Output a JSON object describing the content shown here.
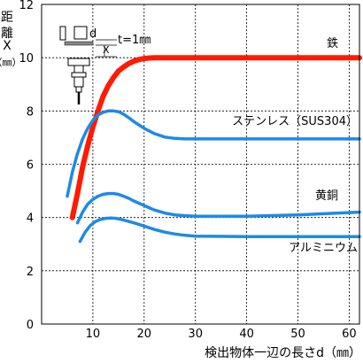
{
  "chart_data": {
    "type": "line",
    "xlabel": "検出物体一辺の長さd（㎜）",
    "ylabel_chars": [
      "距",
      "離",
      "X",
      "（㎜）"
    ],
    "xlim": [
      0,
      62
    ],
    "ylim": [
      0,
      12
    ],
    "x_ticks": [
      10,
      20,
      30,
      40,
      50,
      60
    ],
    "x_tick_labels": [
      "10",
      "20",
      "30",
      "40",
      "50",
      "60"
    ],
    "y_ticks": [
      0,
      2,
      4,
      6,
      8,
      10,
      12
    ],
    "y_tick_labels": [
      "0",
      "2",
      "4",
      "6",
      "8",
      "10",
      "12"
    ],
    "grid": true,
    "series": [
      {
        "name": "鉄",
        "color": "#ff1a00",
        "x": [
          6,
          7,
          8,
          9,
          10,
          11,
          12,
          13,
          14,
          15,
          16,
          17,
          18,
          19,
          20,
          21,
          22,
          23,
          24,
          25,
          27,
          30,
          40,
          50,
          62
        ],
        "y": [
          4.0,
          4.9,
          5.9,
          6.7,
          7.4,
          8.0,
          8.55,
          8.95,
          9.25,
          9.5,
          9.65,
          9.78,
          9.87,
          9.93,
          9.97,
          9.99,
          10.0,
          10.0,
          10.0,
          10.0,
          10.0,
          10.0,
          10.0,
          10.0,
          10.0
        ]
      },
      {
        "name": "ステンレス（SUS304）",
        "color": "#1e8ae6",
        "x": [
          5,
          6,
          7,
          8,
          9,
          10,
          11,
          12,
          13,
          14,
          15,
          16,
          17,
          18,
          20,
          22,
          24,
          26,
          28,
          30,
          40,
          50,
          62
        ],
        "y": [
          4.8,
          5.7,
          6.4,
          6.95,
          7.35,
          7.65,
          7.85,
          7.95,
          8.0,
          8.0,
          7.97,
          7.88,
          7.75,
          7.6,
          7.35,
          7.15,
          7.02,
          6.97,
          6.95,
          6.95,
          6.95,
          6.95,
          6.95
        ]
      },
      {
        "name": "黄銅",
        "color": "#1e8ae6",
        "x": [
          7,
          8,
          9,
          10,
          11,
          12,
          13,
          14,
          15,
          16,
          17,
          18,
          20,
          22,
          24,
          26,
          28,
          30,
          40,
          50,
          62
        ],
        "y": [
          3.8,
          4.2,
          4.5,
          4.68,
          4.8,
          4.87,
          4.9,
          4.9,
          4.87,
          4.8,
          4.72,
          4.62,
          4.45,
          4.28,
          4.17,
          4.1,
          4.07,
          4.05,
          4.05,
          4.1,
          4.2
        ]
      },
      {
        "name": "アルミニウム",
        "color": "#1e8ae6",
        "x": [
          7.5,
          8.5,
          9.5,
          10.5,
          11.5,
          12.5,
          13.5,
          14.5,
          15.5,
          16.5,
          18,
          20,
          22,
          24,
          26,
          28,
          30,
          40,
          50,
          62
        ],
        "y": [
          3.1,
          3.45,
          3.7,
          3.85,
          3.93,
          3.97,
          3.98,
          3.97,
          3.93,
          3.88,
          3.8,
          3.68,
          3.55,
          3.45,
          3.38,
          3.33,
          3.3,
          3.28,
          3.28,
          3.28
        ]
      }
    ],
    "inset": {
      "d_label": "d",
      "t_label": "t=1㎜",
      "x_label": "X"
    }
  }
}
